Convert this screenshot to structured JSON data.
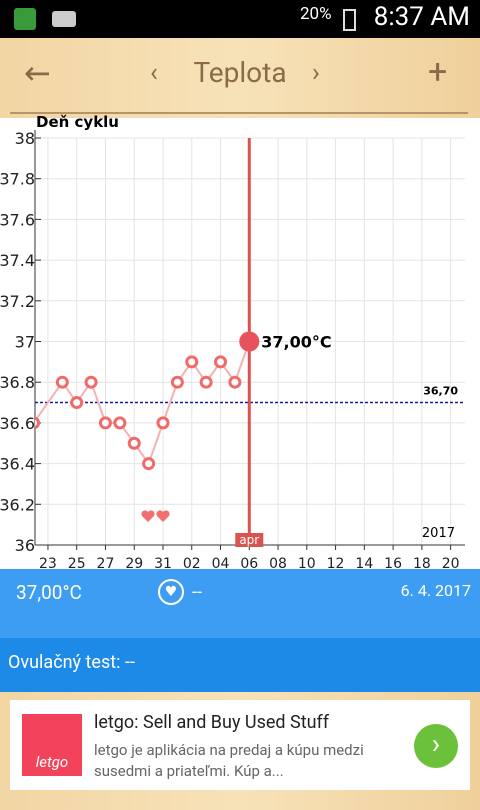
{
  "status_bar": {
    "battery": "20%",
    "time": "8:37 AM"
  },
  "header": {
    "title": "Teplota"
  },
  "chart_data": {
    "type": "line",
    "y_label": "Deň cyklu",
    "x": [
      -1,
      1,
      2,
      3,
      4,
      5,
      6,
      7,
      8,
      9,
      10,
      11,
      12,
      13,
      14
    ],
    "values": [
      36.6,
      36.8,
      36.7,
      36.8,
      36.6,
      36.6,
      36.5,
      36.4,
      36.6,
      36.8,
      36.9,
      36.8,
      36.9,
      36.8,
      37.0
    ],
    "value_labels": [
      null,
      null,
      null,
      null,
      null,
      null,
      null,
      null,
      null,
      null,
      null,
      null,
      null,
      null,
      "37,00°C"
    ],
    "color": "#f06a6a",
    "xlim": [
      -0.9,
      29
    ],
    "ylim": [
      36,
      38
    ],
    "xticks": [
      {
        "value": 0,
        "label": "23"
      },
      {
        "value": 2,
        "label": "25"
      },
      {
        "value": 4,
        "label": "27"
      },
      {
        "value": 6,
        "label": "29"
      },
      {
        "value": 8,
        "label": "31"
      },
      {
        "value": 10,
        "label": "02"
      },
      {
        "value": 12,
        "label": "04"
      },
      {
        "value": 14,
        "label": "06"
      },
      {
        "value": 16,
        "label": "08"
      },
      {
        "value": 18,
        "label": "10"
      },
      {
        "value": 20,
        "label": "12"
      },
      {
        "value": 22,
        "label": "14"
      },
      {
        "value": 24,
        "label": "16"
      },
      {
        "value": 26,
        "label": "18"
      },
      {
        "value": 28,
        "label": "20"
      }
    ],
    "yticks": [
      36,
      36.2,
      36.4,
      36.6,
      36.8,
      37,
      37.2,
      37.4,
      37.6,
      37.8,
      38
    ],
    "grid": true,
    "reference_line": {
      "value": 36.7,
      "label": "36,70"
    },
    "marker": {
      "x": 14,
      "label": "apr"
    },
    "year": "2017"
  },
  "info": {
    "temperature": "37,00°C",
    "intercourse": "--",
    "date": "6. 4. 2017",
    "ovulation_test": "Ovulačný test: --"
  },
  "ad": {
    "logo": "letgo",
    "title": "letgo: Sell and Buy Used Stuff",
    "text": "letgo je aplikácia na predaj a kúpu medzi susedmi a priateľmi. Kúp a..."
  }
}
